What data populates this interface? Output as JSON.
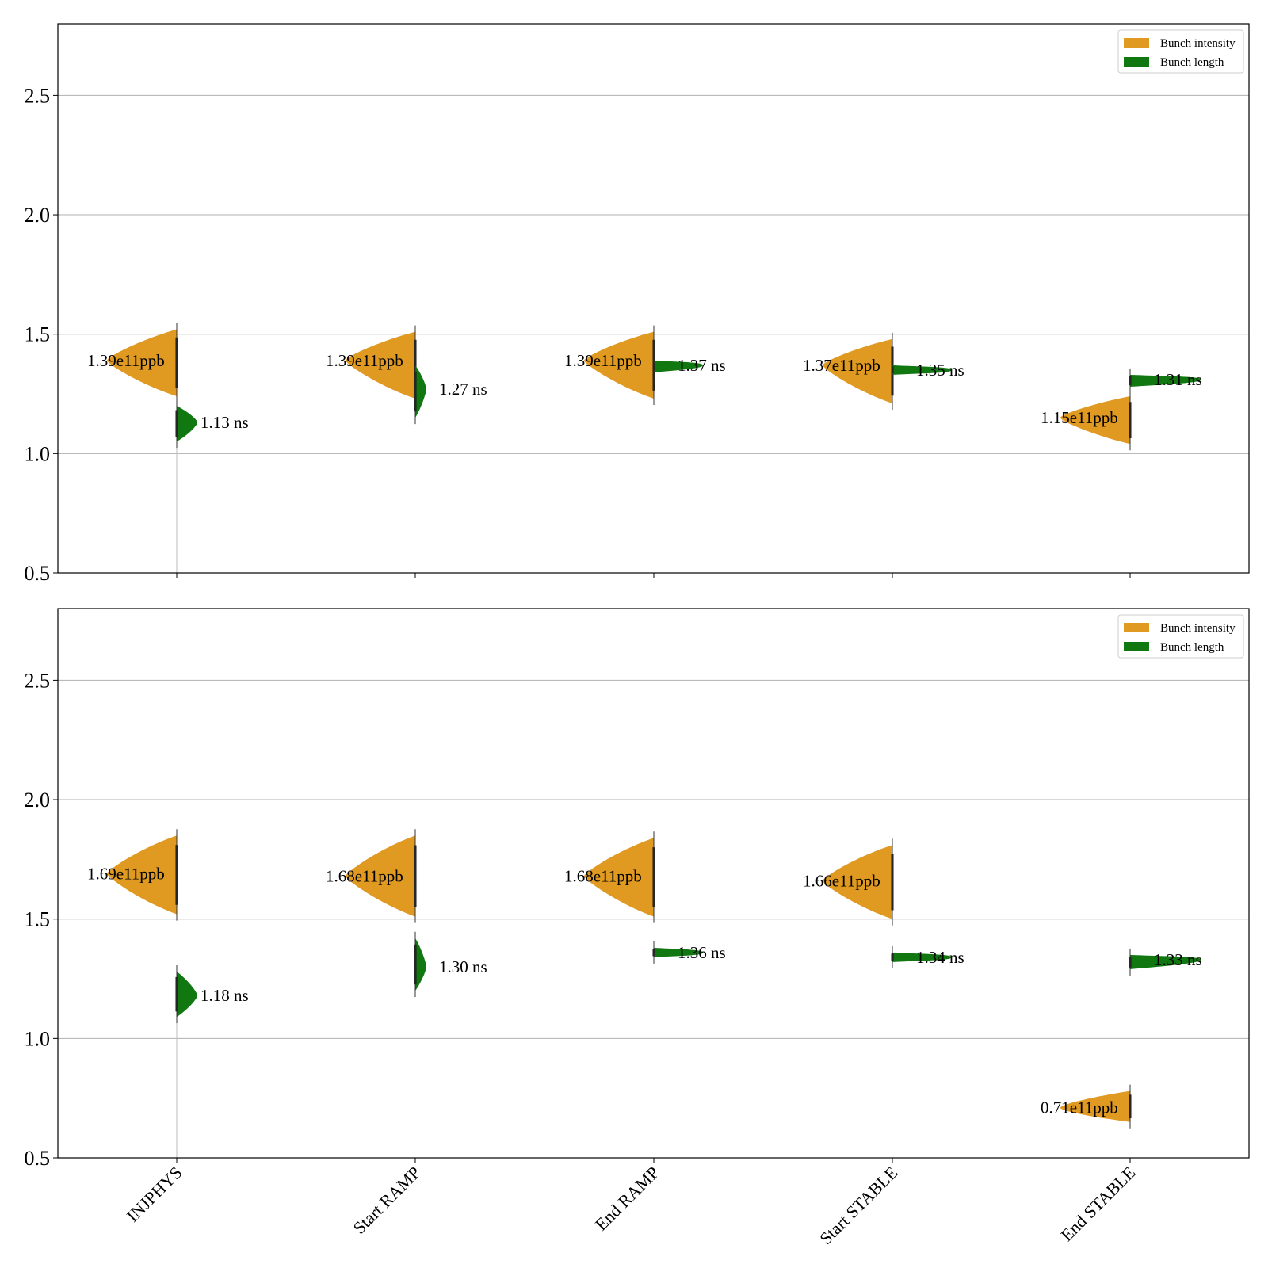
{
  "chart_data": [
    {
      "type": "violin",
      "panel": "top",
      "categories": [
        "INJPHYS",
        "Start RAMP",
        "End RAMP",
        "Start STABLE",
        "End STABLE"
      ],
      "ylim": [
        0.5,
        2.8
      ],
      "yticks": [
        "0.5",
        "1.0",
        "1.5",
        "2.0",
        "2.5"
      ],
      "grid": "horizontal",
      "legend_position": "top-right",
      "series": [
        {
          "name": "Bunch intensity",
          "color": "#e09a22",
          "side": "left",
          "unit": "e11 ppb",
          "labels": [
            "1.39e11ppb",
            "1.39e11ppb",
            "1.39e11ppb",
            "1.37e11ppb",
            "1.15e11ppb"
          ],
          "medians": [
            1.39,
            1.39,
            1.39,
            1.37,
            1.15
          ],
          "ranges": [
            [
              1.24,
              1.52
            ],
            [
              1.23,
              1.51
            ],
            [
              1.23,
              1.51
            ],
            [
              1.21,
              1.48
            ],
            [
              1.04,
              1.24
            ]
          ]
        },
        {
          "name": "Bunch length",
          "color": "#117711",
          "side": "right",
          "unit": "ns",
          "labels": [
            "1.13 ns",
            "1.27 ns",
            "1.37 ns",
            "1.35 ns",
            "1.31 ns"
          ],
          "medians": [
            1.13,
            1.27,
            1.37,
            1.35,
            1.31
          ],
          "ranges": [
            [
              1.05,
              1.2
            ],
            [
              1.15,
              1.37
            ],
            [
              1.34,
              1.39
            ],
            [
              1.33,
              1.37
            ],
            [
              1.28,
              1.33
            ]
          ]
        }
      ]
    },
    {
      "type": "violin",
      "panel": "bottom",
      "categories": [
        "INJPHYS",
        "Start RAMP",
        "End RAMP",
        "Start STABLE",
        "End STABLE"
      ],
      "ylim": [
        0.5,
        2.8
      ],
      "yticks": [
        "0.5",
        "1.0",
        "1.5",
        "2.0",
        "2.5"
      ],
      "grid": "horizontal",
      "legend_position": "top-right",
      "series": [
        {
          "name": "Bunch intensity",
          "color": "#e09a22",
          "side": "left",
          "unit": "e11 ppb",
          "labels": [
            "1.69e11ppb",
            "1.68e11ppb",
            "1.68e11ppb",
            "1.66e11ppb",
            "0.71e11ppb"
          ],
          "medians": [
            1.69,
            1.68,
            1.68,
            1.66,
            0.71
          ],
          "ranges": [
            [
              1.52,
              1.85
            ],
            [
              1.51,
              1.85
            ],
            [
              1.51,
              1.84
            ],
            [
              1.5,
              1.81
            ],
            [
              0.65,
              0.78
            ]
          ]
        },
        {
          "name": "Bunch length",
          "color": "#117711",
          "side": "right",
          "unit": "ns",
          "labels": [
            "1.18 ns",
            "1.30 ns",
            "1.36 ns",
            "1.34 ns",
            "1.33 ns"
          ],
          "medians": [
            1.18,
            1.3,
            1.36,
            1.34,
            1.33
          ],
          "ranges": [
            [
              1.09,
              1.28
            ],
            [
              1.2,
              1.42
            ],
            [
              1.34,
              1.38
            ],
            [
              1.32,
              1.36
            ],
            [
              1.29,
              1.35
            ]
          ]
        }
      ]
    }
  ]
}
